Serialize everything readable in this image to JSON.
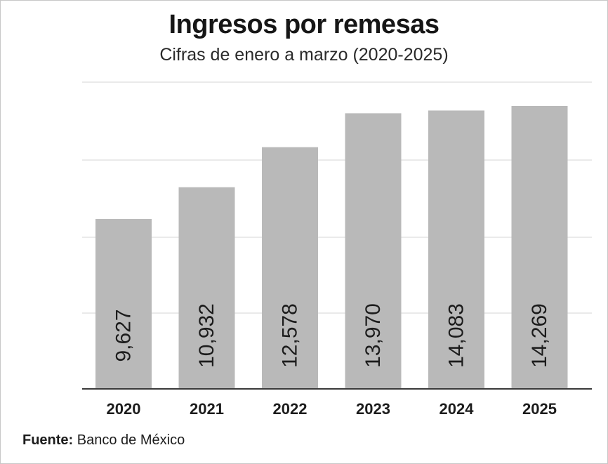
{
  "source": {
    "label": "Fuente:",
    "text": "Banco de México"
  },
  "colors": {
    "bar": "#b9b9b9",
    "grid": "#e4e4e4",
    "axis": "#3a3a3a",
    "text": "#1c1c1c"
  },
  "chart_data": {
    "type": "bar",
    "title": "Ingresos por remesas",
    "subtitle": "Cifras de enero a marzo (2020-2025)",
    "categories": [
      "2020",
      "2021",
      "2022",
      "2023",
      "2024",
      "2025"
    ],
    "values": [
      9627,
      10932,
      12578,
      13970,
      14083,
      14269
    ],
    "value_labels": [
      "9,627",
      "10,932",
      "12,578",
      "13,970",
      "14,083",
      "14,269"
    ],
    "xlabel": "",
    "ylabel": "",
    "grid": true,
    "legend": "none",
    "y_tick_labels_visible": false,
    "value_label_orientation": "vertical"
  }
}
